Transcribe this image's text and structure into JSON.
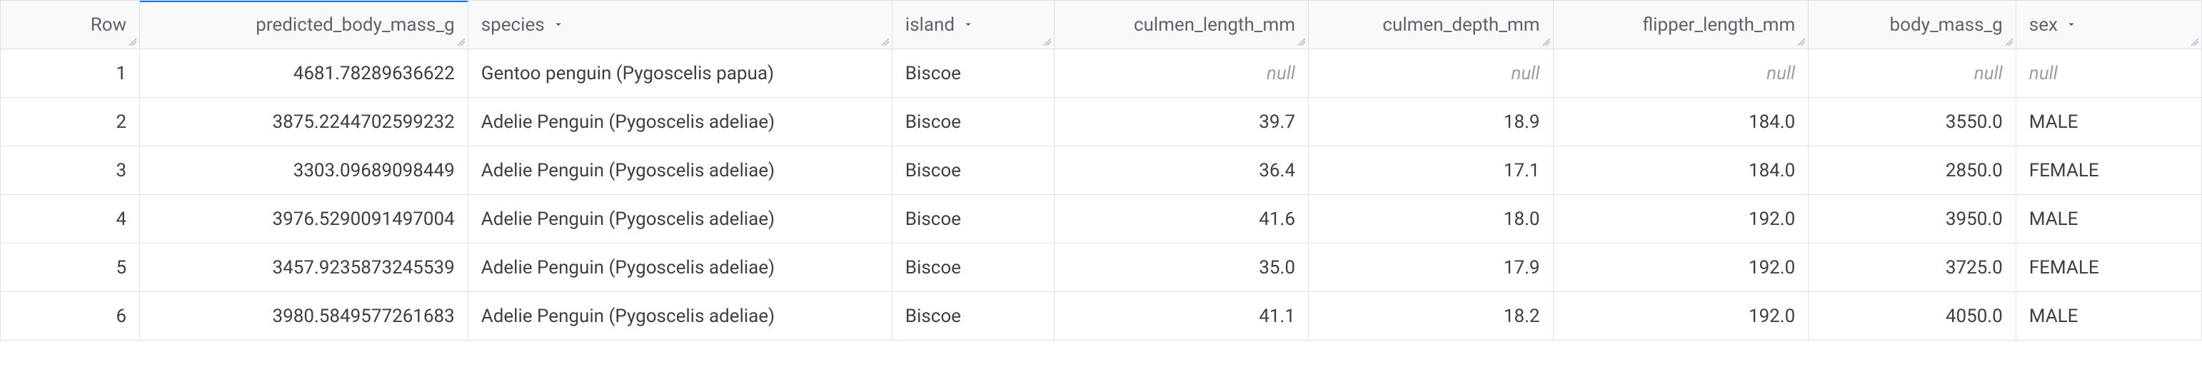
{
  "colors": {
    "border": "#e0e0e0",
    "header_bg": "#f8f9fa",
    "header_text": "#5f6368",
    "body_text": "#3c4043",
    "null_text": "#9aa0a6",
    "accent": "#1a73e8"
  },
  "columns": [
    {
      "key": "row",
      "label": "Row",
      "align": "right",
      "has_dropdown": false,
      "active_indicator": false,
      "width_class": "c-row"
    },
    {
      "key": "pbm",
      "label": "predicted_body_mass_g",
      "align": "right",
      "has_dropdown": false,
      "active_indicator": true,
      "width_class": "c-pbm"
    },
    {
      "key": "spec",
      "label": "species",
      "align": "left",
      "has_dropdown": true,
      "active_indicator": false,
      "width_class": "c-spec"
    },
    {
      "key": "isl",
      "label": "island",
      "align": "left",
      "has_dropdown": true,
      "active_indicator": false,
      "width_class": "c-isl"
    },
    {
      "key": "clen",
      "label": "culmen_length_mm",
      "align": "right",
      "has_dropdown": false,
      "active_indicator": false,
      "width_class": "c-clen"
    },
    {
      "key": "cdep",
      "label": "culmen_depth_mm",
      "align": "right",
      "has_dropdown": false,
      "active_indicator": false,
      "width_class": "c-cdep"
    },
    {
      "key": "flen",
      "label": "flipper_length_mm",
      "align": "right",
      "has_dropdown": false,
      "active_indicator": false,
      "width_class": "c-flen"
    },
    {
      "key": "bmass",
      "label": "body_mass_g",
      "align": "right",
      "has_dropdown": false,
      "active_indicator": false,
      "width_class": "c-bmass"
    },
    {
      "key": "sex",
      "label": "sex",
      "align": "left",
      "has_dropdown": true,
      "active_indicator": false,
      "width_class": "c-sex"
    }
  ],
  "null_label": "null",
  "rows": [
    {
      "row": "1",
      "pbm": "4681.78289636622",
      "spec": "Gentoo penguin (Pygoscelis papua)",
      "isl": "Biscoe",
      "clen": null,
      "cdep": null,
      "flen": null,
      "bmass": null,
      "sex": null
    },
    {
      "row": "2",
      "pbm": "3875.2244702599232",
      "spec": "Adelie Penguin (Pygoscelis adeliae)",
      "isl": "Biscoe",
      "clen": "39.7",
      "cdep": "18.9",
      "flen": "184.0",
      "bmass": "3550.0",
      "sex": "MALE"
    },
    {
      "row": "3",
      "pbm": "3303.09689098449",
      "spec": "Adelie Penguin (Pygoscelis adeliae)",
      "isl": "Biscoe",
      "clen": "36.4",
      "cdep": "17.1",
      "flen": "184.0",
      "bmass": "2850.0",
      "sex": "FEMALE"
    },
    {
      "row": "4",
      "pbm": "3976.5290091497004",
      "spec": "Adelie Penguin (Pygoscelis adeliae)",
      "isl": "Biscoe",
      "clen": "41.6",
      "cdep": "18.0",
      "flen": "192.0",
      "bmass": "3950.0",
      "sex": "MALE"
    },
    {
      "row": "5",
      "pbm": "3457.9235873245539",
      "spec": "Adelie Penguin (Pygoscelis adeliae)",
      "isl": "Biscoe",
      "clen": "35.0",
      "cdep": "17.9",
      "flen": "192.0",
      "bmass": "3725.0",
      "sex": "FEMALE"
    },
    {
      "row": "6",
      "pbm": "3980.5849577261683",
      "spec": "Adelie Penguin (Pygoscelis adeliae)",
      "isl": "Biscoe",
      "clen": "41.1",
      "cdep": "18.2",
      "flen": "192.0",
      "bmass": "4050.0",
      "sex": "MALE"
    }
  ]
}
